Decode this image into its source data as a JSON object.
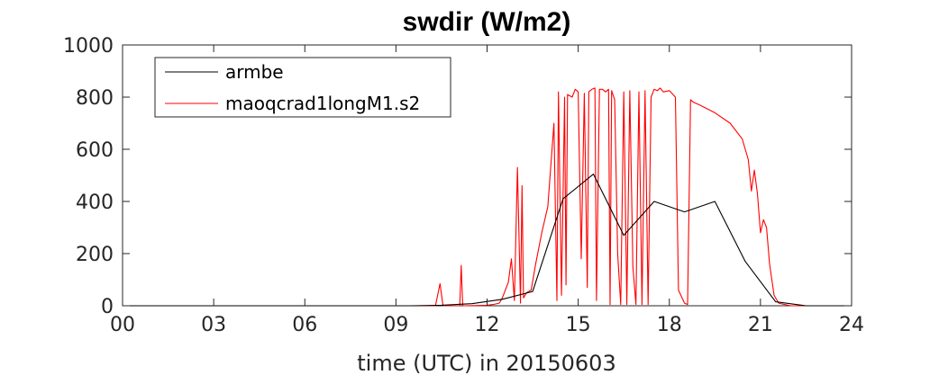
{
  "chart_data": {
    "type": "line",
    "title": "swdir  (W/m2)",
    "xlabel": "time (UTC) in 20150603",
    "ylabel": "",
    "xlim": [
      0,
      24
    ],
    "ylim": [
      0,
      1000
    ],
    "xticks": [
      0,
      3,
      6,
      9,
      12,
      15,
      18,
      21,
      24
    ],
    "xtick_labels": [
      "00",
      "03",
      "06",
      "09",
      "12",
      "15",
      "18",
      "21",
      "24"
    ],
    "yticks": [
      0,
      200,
      400,
      600,
      800,
      1000
    ],
    "ytick_labels": [
      "0",
      "200",
      "400",
      "600",
      "800",
      "1000"
    ],
    "grid": false,
    "legend_position": "top-left",
    "series": [
      {
        "name": "armbe",
        "color": "#000000",
        "x": [
          0,
          0.5,
          1.5,
          2.5,
          3.5,
          4.5,
          5.5,
          6.5,
          7.5,
          8.5,
          9.5,
          10.5,
          11.5,
          12.5,
          13.5,
          14.5,
          15.5,
          16.5,
          17.5,
          18.5,
          19.5,
          20.5,
          21.5,
          22.5,
          24
        ],
        "y": [
          0,
          0,
          0,
          0,
          0,
          0,
          0,
          0,
          0,
          0,
          0,
          2,
          8,
          25,
          55,
          410,
          505,
          270,
          400,
          360,
          400,
          170,
          15,
          0,
          0
        ]
      },
      {
        "name": "maoqcrad1longM1.s2",
        "color": "#ff0000",
        "x": [
          0,
          10.3,
          10.45,
          10.55,
          10.65,
          11.1,
          11.15,
          11.2,
          11.3,
          12.0,
          12.2,
          12.4,
          12.5,
          12.7,
          12.8,
          12.9,
          13.0,
          13.1,
          13.15,
          13.2,
          13.3,
          13.45,
          13.6,
          13.8,
          14.0,
          14.2,
          14.3,
          14.35,
          14.45,
          14.55,
          14.6,
          14.65,
          14.8,
          14.9,
          15.0,
          15.1,
          15.2,
          15.3,
          15.35,
          15.45,
          15.55,
          15.6,
          15.7,
          15.8,
          15.9,
          16.0,
          16.05,
          16.1,
          16.2,
          16.3,
          16.4,
          16.5,
          16.6,
          16.7,
          16.8,
          16.9,
          17.0,
          17.1,
          17.2,
          17.3,
          17.4,
          17.5,
          17.6,
          17.7,
          17.8,
          18.0,
          18.2,
          18.3,
          18.5,
          18.6,
          18.7,
          18.8,
          18.9,
          19.0,
          19.5,
          20.0,
          20.4,
          20.6,
          20.7,
          20.8,
          20.9,
          21.0,
          21.1,
          21.2,
          21.3,
          21.45,
          21.6,
          21.8,
          22.0,
          24
        ],
        "y": [
          0,
          0,
          85,
          0,
          0,
          0,
          155,
          0,
          0,
          2,
          5,
          10,
          30,
          90,
          180,
          20,
          530,
          10,
          460,
          30,
          50,
          60,
          160,
          280,
          380,
          700,
          20,
          820,
          40,
          800,
          80,
          810,
          800,
          830,
          820,
          180,
          815,
          70,
          820,
          830,
          835,
          20,
          830,
          830,
          820,
          830,
          5,
          825,
          790,
          200,
          5,
          820,
          5,
          825,
          150,
          5,
          820,
          5,
          825,
          5,
          800,
          830,
          825,
          835,
          820,
          825,
          800,
          60,
          10,
          5,
          790,
          780,
          775,
          770,
          740,
          700,
          640,
          560,
          440,
          520,
          430,
          280,
          330,
          300,
          160,
          40,
          10,
          5,
          0,
          0
        ]
      }
    ]
  }
}
